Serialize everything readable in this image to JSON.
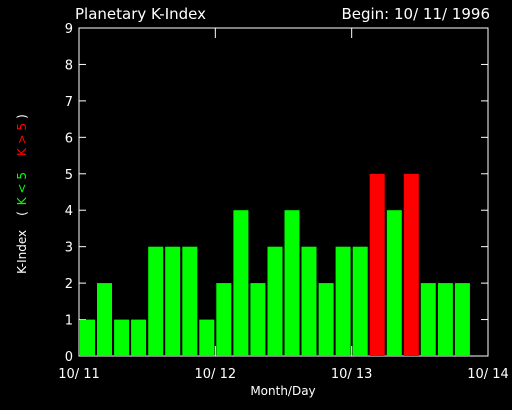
{
  "chart_data": {
    "type": "bar",
    "title": "Planetary K-Index",
    "begin_label": "Begin: 10/ 11/ 1996",
    "xlabel": "Month/Day",
    "ylabel": {
      "prefix": "K-Index",
      "open_paren": "(",
      "low_range": "K < 5",
      "high_range": "K > 5",
      "close_paren": ")"
    },
    "ylim": [
      0,
      9
    ],
    "y_ticks": [
      "0",
      "1",
      "2",
      "3",
      "4",
      "5",
      "6",
      "7",
      "8",
      "9"
    ],
    "x_tick_labels": [
      "10/ 11",
      "10/ 12",
      "10/ 13",
      "10/ 14"
    ],
    "values": [
      1,
      2,
      1,
      1,
      3,
      3,
      3,
      1,
      2,
      4,
      2,
      3,
      4,
      3,
      2,
      3,
      3,
      5,
      4,
      5,
      2,
      2,
      2
    ],
    "threshold": 5,
    "colors": {
      "background": "#000000",
      "frame": "#ffffff",
      "low": "#00ff00",
      "high": "#ff0000",
      "text": "#ffffff"
    }
  }
}
